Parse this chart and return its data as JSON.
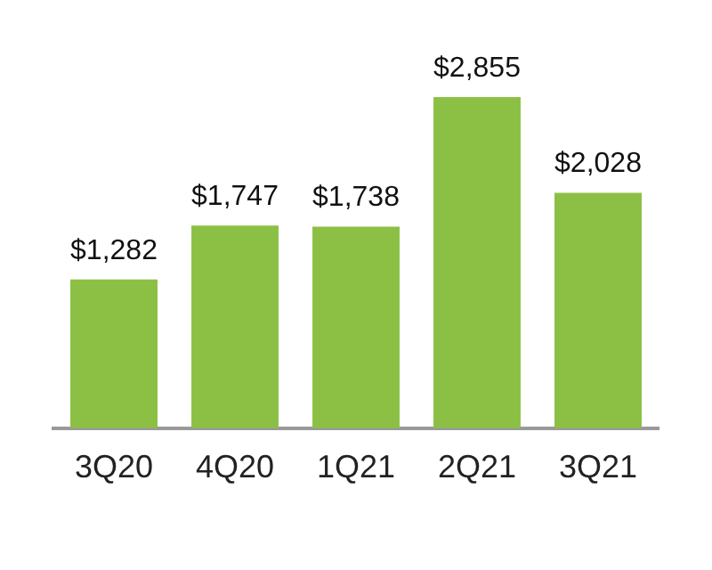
{
  "chart_data": {
    "type": "bar",
    "categories": [
      "3Q20",
      "4Q20",
      "1Q21",
      "2Q21",
      "3Q21"
    ],
    "values": [
      1282,
      1747,
      1738,
      2855,
      2028
    ],
    "value_labels": [
      "$1,282",
      "$1,747",
      "$1,738",
      "$2,855",
      "$2,028"
    ],
    "color": "#8cc044",
    "tick_labels": "x",
    "grid": false,
    "legend": false
  }
}
